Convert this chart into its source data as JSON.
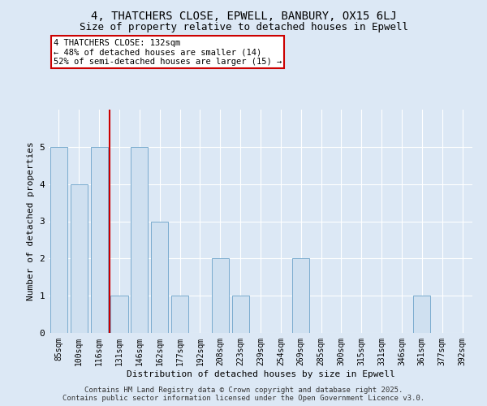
{
  "title": "4, THATCHERS CLOSE, EPWELL, BANBURY, OX15 6LJ",
  "subtitle": "Size of property relative to detached houses in Epwell",
  "xlabel": "Distribution of detached houses by size in Epwell",
  "ylabel": "Number of detached properties",
  "categories": [
    "85sqm",
    "100sqm",
    "116sqm",
    "131sqm",
    "146sqm",
    "162sqm",
    "177sqm",
    "192sqm",
    "208sqm",
    "223sqm",
    "239sqm",
    "254sqm",
    "269sqm",
    "285sqm",
    "300sqm",
    "315sqm",
    "331sqm",
    "346sqm",
    "361sqm",
    "377sqm",
    "392sqm"
  ],
  "values": [
    5,
    4,
    5,
    1,
    5,
    3,
    1,
    0,
    2,
    1,
    0,
    0,
    2,
    0,
    0,
    0,
    0,
    0,
    1,
    0,
    0
  ],
  "bar_color": "#cfe0f0",
  "bar_edgecolor": "#7aabce",
  "red_line_index": 3,
  "ylim": [
    0,
    6
  ],
  "yticks": [
    0,
    1,
    2,
    3,
    4,
    5
  ],
  "annotation_text": "4 THATCHERS CLOSE: 132sqm\n← 48% of detached houses are smaller (14)\n52% of semi-detached houses are larger (15) →",
  "annotation_box_color": "#ffffff",
  "annotation_box_edgecolor": "#cc0000",
  "footer": "Contains HM Land Registry data © Crown copyright and database right 2025.\nContains public sector information licensed under the Open Government Licence v3.0.",
  "background_color": "#dce8f5",
  "plot_bg_color": "#dce8f5",
  "grid_color": "#ffffff",
  "title_fontsize": 10,
  "subtitle_fontsize": 9,
  "tick_fontsize": 7,
  "label_fontsize": 8
}
